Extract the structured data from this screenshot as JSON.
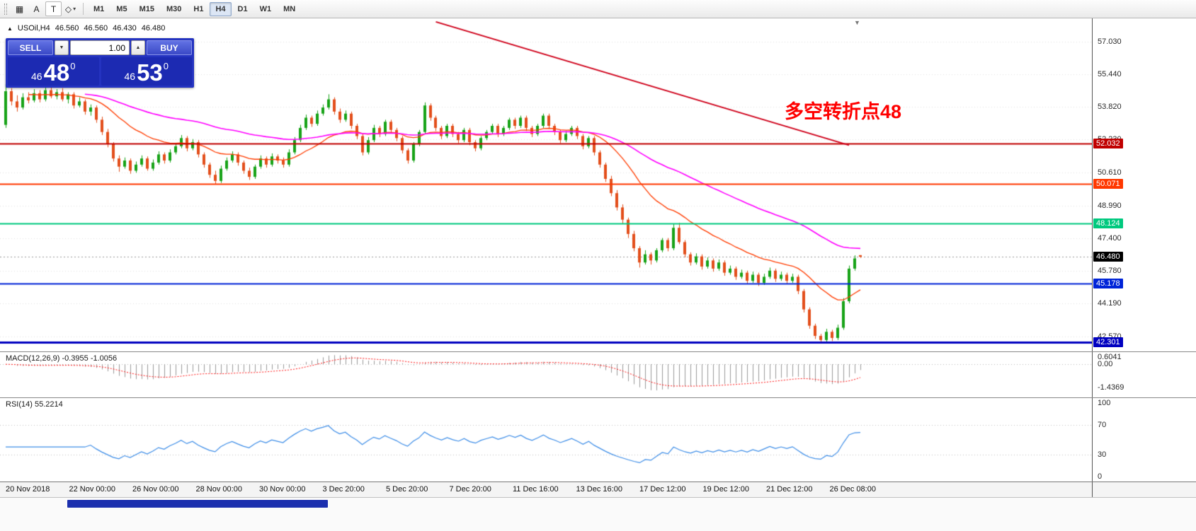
{
  "toolbar": {
    "tools": [
      {
        "name": "crosshair-tool",
        "glyph": "▦"
      },
      {
        "name": "text-label-tool",
        "glyph": "A"
      },
      {
        "name": "text-box-tool",
        "glyph": "T",
        "boxed": true
      },
      {
        "name": "shapes-tool",
        "glyph": "◇",
        "chevron": "▾"
      }
    ],
    "timeframes": [
      "M1",
      "M5",
      "M15",
      "M30",
      "H1",
      "H4",
      "D1",
      "W1",
      "MN"
    ],
    "active_timeframe": "H4"
  },
  "icons": {
    "scroll_marker": "▼"
  },
  "quote_bar": {
    "expand_icon": "▲",
    "symbol": "USOil,H4",
    "open": "46.560",
    "high": "46.560",
    "low": "46.430",
    "close": "46.480"
  },
  "trade_panel": {
    "sell_label": "SELL",
    "buy_label": "BUY",
    "volume": "1.00",
    "dropdown_icon": "▼",
    "spin_up_icon": "▲",
    "sell_price": {
      "small": "46",
      "big": "48",
      "sup": "0"
    },
    "buy_price": {
      "small": "46",
      "big": "53",
      "sup": "0"
    }
  },
  "annotation": {
    "text": "多空转折点48",
    "color": "#ff0000"
  },
  "price_axis": {
    "grid_labels": [
      {
        "text": "57.030",
        "value": 57.03
      },
      {
        "text": "55.440",
        "value": 55.44
      },
      {
        "text": "53.820",
        "value": 53.82
      },
      {
        "text": "52.230",
        "value": 52.23
      },
      {
        "text": "50.610",
        "value": 50.61
      },
      {
        "text": "48.990",
        "value": 48.99
      },
      {
        "text": "47.400",
        "value": 47.4
      },
      {
        "text": "45.780",
        "value": 45.78
      },
      {
        "text": "44.190",
        "value": 44.19
      },
      {
        "text": "42.570",
        "value": 42.57
      }
    ],
    "tags": [
      {
        "text": "52.032",
        "value": 52.032,
        "bg": "#c00000"
      },
      {
        "text": "50.071",
        "value": 50.071,
        "bg": "#ff3800"
      },
      {
        "text": "48.124",
        "value": 48.124,
        "bg": "#00c97e"
      },
      {
        "text": "46.480",
        "value": 46.48,
        "bg": "#000000"
      },
      {
        "text": "45.178",
        "value": 45.178,
        "bg": "#0024d8"
      },
      {
        "text": "42.301",
        "value": 42.301,
        "bg": "#0000c0"
      }
    ]
  },
  "macd_panel": {
    "title": "MACD(12,26,9) -0.3955 -1.0056",
    "labels": [
      {
        "text": "0.6041",
        "value": 0.6041
      },
      {
        "text": "0.00",
        "value": 0
      },
      {
        "text": "-1.4369",
        "value": -1.4369
      }
    ],
    "range": [
      -2.0,
      0.75
    ]
  },
  "rsi_panel": {
    "title": "RSI(14) 55.2214",
    "labels": [
      {
        "text": "100",
        "value": 100
      },
      {
        "text": "70",
        "value": 70
      },
      {
        "text": "30",
        "value": 30
      },
      {
        "text": "0",
        "value": 0
      }
    ],
    "levels": [
      70,
      30
    ]
  },
  "time_axis": {
    "labels": [
      "20 Nov 2018",
      "22 Nov 00:00",
      "26 Nov 00:00",
      "28 Nov 00:00",
      "30 Nov 00:00",
      "3 Dec 20:00",
      "5 Dec 20:00",
      "7 Dec 20:00",
      "11 Dec 16:00",
      "13 Dec 16:00",
      "17 Dec 12:00",
      "19 Dec 12:00",
      "21 Dec 12:00",
      "26 Dec 08:00"
    ]
  },
  "chart_data": {
    "type": "candlestick",
    "symbol": "USOil",
    "timeframe": "H4",
    "title": "USOil H4 candlestick chart with MACD(12,26,9) and RSI(14)",
    "ylim": [
      41.84,
      58.17
    ],
    "up_color": "#18a318",
    "down_color": "#e34f1c",
    "ma_fast": {
      "period": 20,
      "color": "#ff3c00"
    },
    "ma_slow": {
      "period": 60,
      "color": "#ff00ff"
    },
    "macd": {
      "fast": 12,
      "slow": 26,
      "signal": 9
    },
    "rsi": {
      "period": 14
    },
    "current_price": 46.48,
    "h_lines": [
      {
        "value": 52.032,
        "color": "#c00000",
        "width": 2
      },
      {
        "value": 50.071,
        "color": "#ff3800",
        "width": 2
      },
      {
        "value": 48.124,
        "color": "#00c97e",
        "width": 2
      },
      {
        "value": 45.178,
        "color": "#0024d8",
        "width": 2
      },
      {
        "value": 42.301,
        "color": "#0000c0",
        "width": 3
      }
    ],
    "trend_line": {
      "x1_index": 76,
      "y1_price": 58.0,
      "x2_index": 149,
      "y2_price": 51.95,
      "color": "#d0021b",
      "width": 2
    },
    "candles": [
      [
        52.95,
        54.95,
        52.8,
        54.6
      ],
      [
        54.6,
        54.75,
        53.9,
        54.1
      ],
      [
        54.1,
        54.4,
        53.6,
        53.8
      ],
      [
        53.8,
        54.5,
        53.7,
        54.3
      ],
      [
        54.3,
        54.55,
        54.0,
        54.15
      ],
      [
        54.15,
        54.7,
        54.05,
        54.5
      ],
      [
        54.5,
        54.65,
        54.05,
        54.2
      ],
      [
        54.2,
        54.8,
        54.1,
        54.65
      ],
      [
        54.65,
        54.85,
        54.25,
        54.35
      ],
      [
        54.35,
        54.7,
        54.2,
        54.55
      ],
      [
        54.55,
        54.75,
        54.1,
        54.2
      ],
      [
        54.2,
        54.55,
        54.0,
        54.45
      ],
      [
        54.45,
        54.55,
        53.75,
        53.9
      ],
      [
        53.9,
        54.3,
        53.8,
        54.1
      ],
      [
        54.1,
        54.2,
        53.45,
        53.6
      ],
      [
        53.6,
        53.95,
        53.4,
        53.8
      ],
      [
        53.8,
        53.9,
        53.05,
        53.2
      ],
      [
        53.2,
        53.35,
        52.45,
        52.6
      ],
      [
        52.6,
        52.75,
        51.85,
        52.0
      ],
      [
        52.0,
        52.1,
        51.15,
        51.3
      ],
      [
        51.3,
        51.45,
        50.65,
        50.9
      ],
      [
        50.9,
        51.35,
        50.8,
        51.2
      ],
      [
        51.2,
        51.3,
        50.55,
        50.7
      ],
      [
        50.7,
        51.15,
        50.6,
        51.0
      ],
      [
        51.0,
        51.45,
        50.9,
        51.3
      ],
      [
        51.3,
        51.4,
        50.7,
        50.8
      ],
      [
        50.8,
        51.25,
        50.7,
        51.1
      ],
      [
        51.1,
        51.65,
        51.0,
        51.5
      ],
      [
        51.5,
        51.6,
        51.05,
        51.2
      ],
      [
        51.2,
        51.75,
        51.1,
        51.6
      ],
      [
        51.6,
        52.05,
        51.5,
        51.9
      ],
      [
        51.9,
        52.45,
        51.8,
        52.3
      ],
      [
        52.3,
        52.4,
        51.65,
        51.8
      ],
      [
        51.8,
        52.25,
        51.7,
        52.1
      ],
      [
        52.1,
        52.2,
        51.35,
        51.5
      ],
      [
        51.5,
        51.6,
        50.85,
        51.0
      ],
      [
        51.0,
        51.1,
        50.35,
        50.5
      ],
      [
        50.5,
        50.7,
        50.05,
        50.2
      ],
      [
        50.2,
        50.95,
        50.1,
        50.8
      ],
      [
        50.8,
        51.35,
        50.7,
        51.2
      ],
      [
        51.2,
        51.65,
        51.1,
        51.5
      ],
      [
        51.5,
        51.6,
        50.95,
        51.1
      ],
      [
        51.1,
        51.2,
        50.55,
        50.7
      ],
      [
        50.7,
        50.85,
        50.25,
        50.4
      ],
      [
        50.4,
        51.0,
        50.3,
        50.9
      ],
      [
        50.9,
        51.45,
        50.8,
        51.3
      ],
      [
        51.3,
        51.4,
        50.85,
        51.0
      ],
      [
        51.0,
        51.55,
        50.9,
        51.4
      ],
      [
        51.4,
        51.5,
        51.05,
        51.2
      ],
      [
        51.2,
        51.35,
        50.85,
        51.0
      ],
      [
        51.0,
        51.75,
        50.9,
        51.6
      ],
      [
        51.6,
        52.35,
        51.5,
        52.2
      ],
      [
        52.2,
        52.95,
        52.1,
        52.8
      ],
      [
        52.8,
        53.45,
        52.7,
        53.3
      ],
      [
        53.3,
        53.4,
        52.85,
        53.0
      ],
      [
        53.0,
        53.65,
        52.9,
        53.5
      ],
      [
        53.5,
        53.95,
        53.4,
        53.8
      ],
      [
        53.8,
        54.45,
        53.7,
        54.2
      ],
      [
        54.2,
        54.3,
        53.45,
        53.6
      ],
      [
        53.6,
        53.75,
        53.05,
        53.2
      ],
      [
        53.2,
        53.65,
        53.1,
        53.5
      ],
      [
        53.5,
        53.6,
        52.75,
        52.9
      ],
      [
        52.9,
        53.0,
        52.25,
        52.4
      ],
      [
        52.4,
        52.5,
        51.45,
        51.6
      ],
      [
        51.6,
        52.35,
        51.5,
        52.2
      ],
      [
        52.2,
        52.95,
        52.1,
        52.8
      ],
      [
        52.8,
        52.9,
        52.35,
        52.5
      ],
      [
        52.5,
        53.2,
        52.4,
        53.1
      ],
      [
        53.1,
        53.2,
        52.55,
        52.7
      ],
      [
        52.7,
        52.8,
        52.15,
        52.3
      ],
      [
        52.3,
        52.4,
        51.55,
        51.7
      ],
      [
        51.7,
        51.8,
        51.05,
        51.2
      ],
      [
        51.2,
        52.1,
        51.1,
        52.0
      ],
      [
        52.0,
        52.7,
        51.9,
        52.6
      ],
      [
        52.6,
        54.05,
        52.5,
        53.9
      ],
      [
        53.9,
        54.0,
        53.15,
        53.3
      ],
      [
        53.3,
        53.4,
        52.65,
        52.8
      ],
      [
        52.8,
        52.9,
        52.25,
        52.4
      ],
      [
        52.4,
        53.0,
        52.3,
        52.9
      ],
      [
        52.9,
        53.0,
        52.35,
        52.5
      ],
      [
        52.5,
        52.6,
        52.05,
        52.2
      ],
      [
        52.2,
        52.8,
        52.1,
        52.7
      ],
      [
        52.7,
        52.8,
        51.95,
        52.1
      ],
      [
        52.1,
        52.2,
        51.65,
        51.8
      ],
      [
        51.8,
        52.4,
        51.7,
        52.3
      ],
      [
        52.3,
        52.7,
        52.2,
        52.6
      ],
      [
        52.6,
        53.0,
        52.5,
        52.9
      ],
      [
        52.9,
        53.0,
        52.35,
        52.5
      ],
      [
        52.5,
        52.9,
        52.4,
        52.8
      ],
      [
        52.8,
        53.3,
        52.7,
        53.2
      ],
      [
        53.2,
        53.3,
        52.75,
        52.9
      ],
      [
        52.9,
        53.4,
        52.8,
        53.3
      ],
      [
        53.3,
        53.4,
        52.65,
        52.8
      ],
      [
        52.8,
        52.9,
        52.35,
        52.5
      ],
      [
        52.5,
        53.0,
        52.4,
        52.9
      ],
      [
        52.9,
        53.5,
        52.8,
        53.4
      ],
      [
        53.4,
        53.5,
        52.75,
        52.9
      ],
      [
        52.9,
        53.0,
        52.45,
        52.6
      ],
      [
        52.6,
        52.7,
        52.05,
        52.2
      ],
      [
        52.2,
        52.65,
        52.1,
        52.5
      ],
      [
        52.5,
        52.9,
        52.4,
        52.8
      ],
      [
        52.8,
        52.9,
        52.25,
        52.4
      ],
      [
        52.4,
        52.5,
        51.75,
        51.9
      ],
      [
        51.9,
        52.4,
        51.8,
        52.3
      ],
      [
        52.3,
        52.4,
        51.45,
        51.6
      ],
      [
        51.6,
        51.7,
        50.85,
        51.0
      ],
      [
        51.0,
        51.1,
        50.15,
        50.3
      ],
      [
        50.3,
        50.45,
        49.45,
        49.6
      ],
      [
        49.6,
        49.75,
        48.75,
        48.9
      ],
      [
        48.9,
        49.05,
        48.1,
        48.3
      ],
      [
        48.3,
        48.4,
        47.4,
        47.6
      ],
      [
        47.6,
        47.75,
        46.75,
        46.9
      ],
      [
        46.9,
        47.0,
        45.95,
        46.2
      ],
      [
        46.2,
        46.8,
        46.1,
        46.6
      ],
      [
        46.6,
        46.7,
        46.1,
        46.3
      ],
      [
        46.3,
        46.9,
        46.2,
        46.8
      ],
      [
        46.8,
        47.4,
        46.7,
        47.3
      ],
      [
        47.3,
        47.4,
        46.75,
        46.9
      ],
      [
        46.9,
        48.1,
        46.8,
        47.9
      ],
      [
        47.9,
        48.15,
        47.1,
        47.2
      ],
      [
        47.2,
        47.3,
        46.45,
        46.6
      ],
      [
        46.6,
        46.7,
        46.05,
        46.2
      ],
      [
        46.2,
        46.65,
        46.1,
        46.5
      ],
      [
        46.5,
        46.6,
        45.85,
        46.0
      ],
      [
        46.0,
        46.45,
        45.9,
        46.3
      ],
      [
        46.3,
        46.4,
        45.75,
        45.9
      ],
      [
        45.9,
        46.35,
        45.8,
        46.2
      ],
      [
        46.2,
        46.3,
        45.55,
        45.7
      ],
      [
        45.7,
        46.05,
        45.6,
        45.9
      ],
      [
        45.9,
        46.0,
        45.35,
        45.5
      ],
      [
        45.5,
        45.85,
        45.4,
        45.7
      ],
      [
        45.7,
        45.8,
        45.15,
        45.3
      ],
      [
        45.3,
        45.75,
        45.2,
        45.6
      ],
      [
        45.6,
        45.7,
        45.05,
        45.2
      ],
      [
        45.2,
        45.65,
        45.1,
        45.5
      ],
      [
        45.5,
        45.95,
        45.4,
        45.8
      ],
      [
        45.8,
        45.9,
        45.25,
        45.4
      ],
      [
        45.4,
        45.75,
        45.3,
        45.6
      ],
      [
        45.6,
        45.7,
        45.15,
        45.3
      ],
      [
        45.3,
        45.65,
        45.2,
        45.5
      ],
      [
        45.5,
        45.6,
        44.65,
        44.8
      ],
      [
        44.8,
        44.9,
        43.75,
        43.9
      ],
      [
        43.9,
        44.0,
        42.95,
        43.1
      ],
      [
        43.1,
        43.2,
        42.45,
        42.6
      ],
      [
        42.6,
        42.7,
        42.25,
        42.4
      ],
      [
        42.4,
        42.95,
        42.3,
        42.8
      ],
      [
        42.8,
        42.9,
        42.35,
        42.5
      ],
      [
        42.5,
        43.15,
        42.4,
        43.0
      ],
      [
        43.0,
        44.45,
        42.9,
        44.3
      ],
      [
        44.3,
        46.05,
        44.2,
        45.9
      ],
      [
        45.9,
        46.55,
        45.8,
        46.4
      ],
      [
        46.56,
        46.56,
        46.43,
        46.48
      ]
    ]
  }
}
